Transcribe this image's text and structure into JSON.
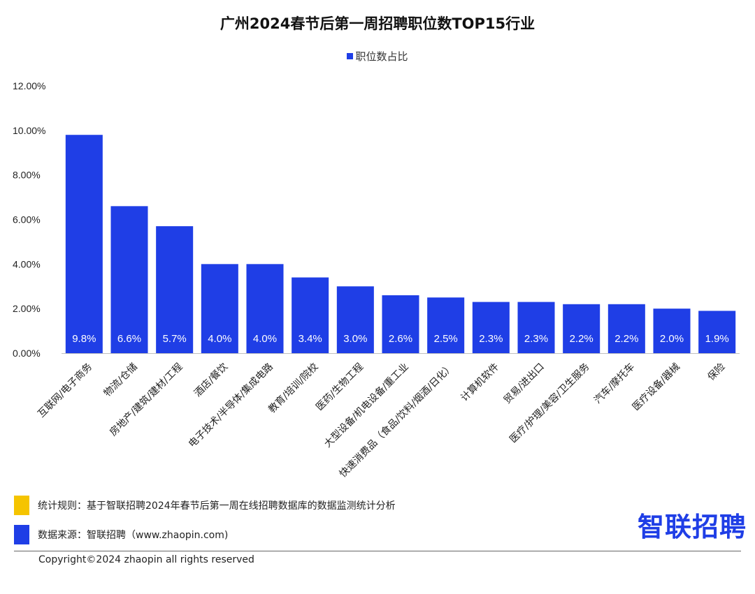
{
  "chart_data": {
    "type": "bar",
    "title": "广州2024春节后第一周招聘职位数TOP15行业",
    "legend_position": "top-center",
    "grid": false,
    "ylim": [
      0,
      12
    ],
    "ytick_values": [
      0,
      2,
      4,
      6,
      8,
      10,
      12
    ],
    "ytick_labels": [
      "0.00%",
      "2.00%",
      "4.00%",
      "6.00%",
      "8.00%",
      "10.00%",
      "12.00%"
    ],
    "series": [
      {
        "name": "职位数占比",
        "color": "#1f3ee6",
        "values": [
          9.8,
          6.6,
          5.7,
          4.0,
          4.0,
          3.4,
          3.0,
          2.6,
          2.5,
          2.3,
          2.3,
          2.2,
          2.2,
          2.0,
          1.9
        ],
        "data_labels": [
          "9.8%",
          "6.6%",
          "5.7%",
          "4.0%",
          "4.0%",
          "3.4%",
          "3.0%",
          "2.6%",
          "2.5%",
          "2.3%",
          "2.3%",
          "2.2%",
          "2.2%",
          "2.0%",
          "1.9%"
        ]
      }
    ],
    "categories": [
      "互联网/电子商务",
      "物流/仓储",
      "房地产/建筑/建材/工程",
      "酒店/餐饮",
      "电子技术/半导体/集成电路",
      "教育/培训/院校",
      "医药/生物工程",
      "大型设备/机电设备/重工业",
      "快速消费品（食品/饮料/烟酒/日化）",
      "计算机软件",
      "贸易/进出口",
      "医疗/护理/美容/卫生服务",
      "汽车/摩托车",
      "医疗设备/器械",
      "保险"
    ]
  },
  "footnotes": {
    "rule_text": "统计规则：基于智联招聘2024年春节后第一周在线招聘数据库的数据监测统计分析",
    "rule_color": "#f5c400",
    "source_text": "数据来源：智联招聘（www.zhaopin.com)",
    "source_color": "#1f3ee6"
  },
  "logo_text": "智联招聘",
  "copyright": "Copyright©2024 zhaopin all rights reserved"
}
